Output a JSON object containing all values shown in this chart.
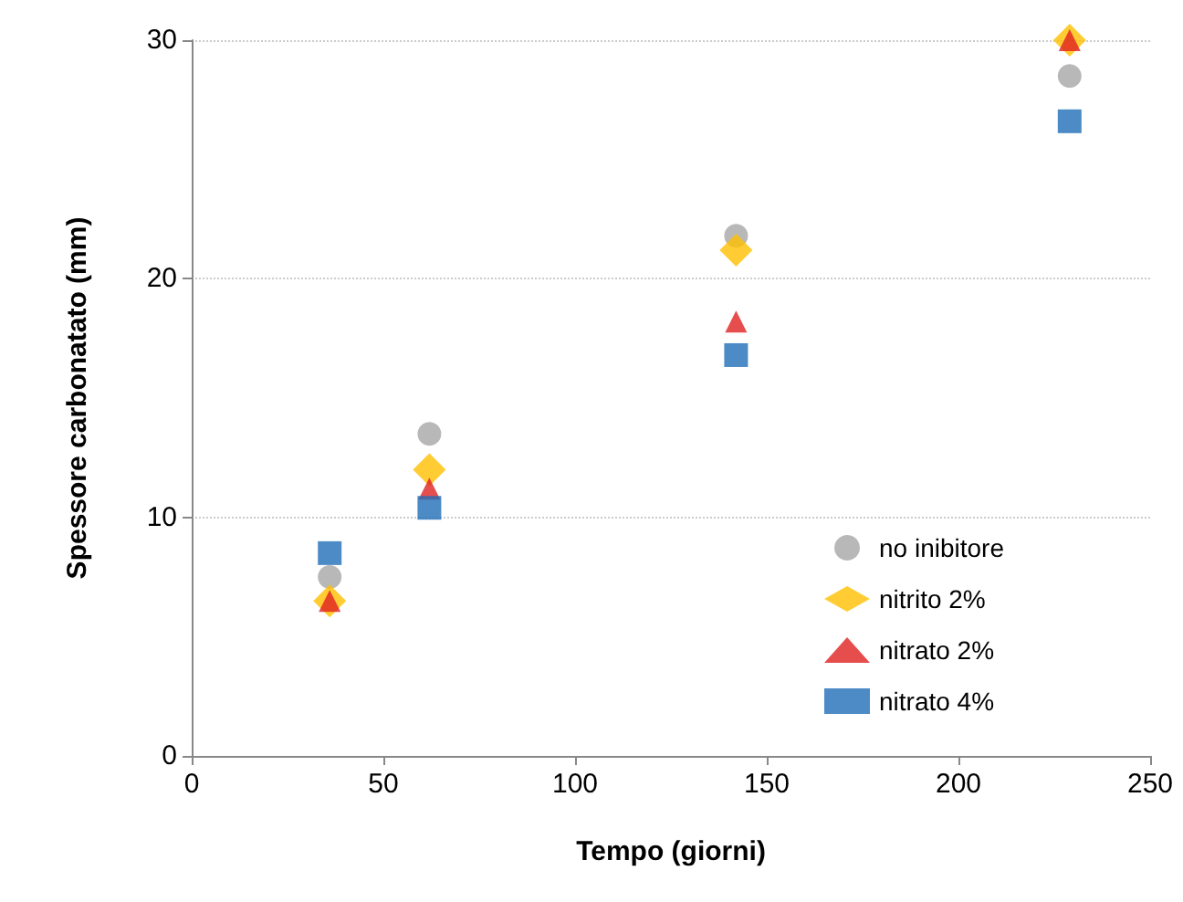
{
  "chart_data": {
    "type": "scatter",
    "xlabel": "Tempo (giorni)",
    "ylabel": "Spessore carbonatato (mm)",
    "x": [
      36,
      62,
      142,
      229
    ],
    "series": [
      {
        "name": "no inibitore",
        "color": "#a6a6a6",
        "marker": "circle",
        "values": [
          7.5,
          13.5,
          21.8,
          28.5
        ]
      },
      {
        "name": "nitrito 2%",
        "color": "#ffc000",
        "marker": "diamond",
        "values": [
          6.5,
          12.0,
          21.2,
          30.0
        ]
      },
      {
        "name": "nitrato 2%",
        "color": "#e02020",
        "marker": "triangle",
        "values": [
          6.5,
          11.2,
          18.2,
          30.0
        ]
      },
      {
        "name": "nitrato 4%",
        "color": "#1f6eb8",
        "marker": "square",
        "values": [
          8.5,
          10.4,
          16.8,
          26.6
        ]
      }
    ],
    "xlim": [
      0,
      250
    ],
    "xticks": [
      0,
      50,
      100,
      150,
      200,
      250
    ],
    "ylim": [
      0,
      30
    ],
    "yticks": [
      0,
      10,
      20,
      30
    ],
    "grid": "y",
    "legend": "bottom right"
  }
}
